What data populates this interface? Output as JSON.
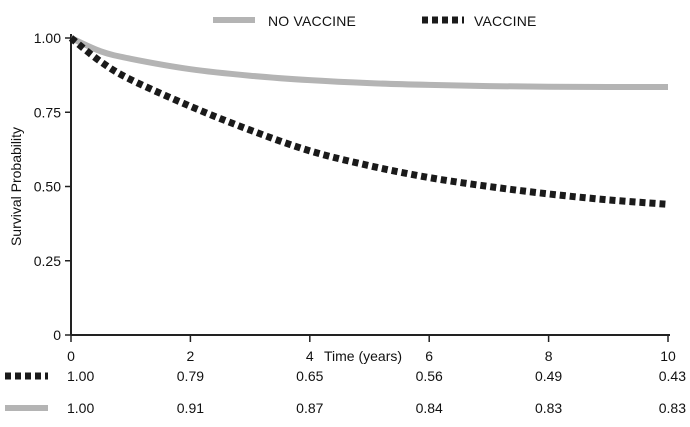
{
  "chart_data": {
    "type": "line",
    "xlabel": "Time (years)",
    "ylabel": "Survival Probability",
    "xlim": [
      0,
      10
    ],
    "ylim": [
      0,
      1
    ],
    "x_ticks": [
      "0",
      "2",
      "4",
      "6",
      "8",
      "10"
    ],
    "y_ticks": [
      "0",
      "0.25",
      "0.50",
      "0.75",
      "1.00"
    ],
    "x_tick_values": [
      0,
      2,
      4,
      6,
      8,
      10
    ],
    "y_tick_values": [
      0,
      0.25,
      0.5,
      0.75,
      1.0
    ],
    "legend_position": "top",
    "series": [
      {
        "name": "NO VACCINE",
        "color": "#b4b4b4",
        "style": "solid",
        "x": [
          0,
          0.5,
          1,
          2,
          3,
          4,
          5,
          6,
          7,
          8,
          9,
          10
        ],
        "values": [
          1.0,
          0.955,
          0.93,
          0.895,
          0.873,
          0.858,
          0.848,
          0.842,
          0.838,
          0.836,
          0.835,
          0.835
        ]
      },
      {
        "name": "VACCINE",
        "color": "#1a1a1a",
        "style": "dashed",
        "x": [
          0,
          0.5,
          1,
          2,
          3,
          4,
          5,
          6,
          7,
          8,
          9,
          10
        ],
        "values": [
          1.0,
          0.92,
          0.86,
          0.77,
          0.69,
          0.62,
          0.57,
          0.53,
          0.5,
          0.475,
          0.455,
          0.44
        ]
      }
    ],
    "risk_table": [
      {
        "series": "VACCINE",
        "values": [
          "1.00",
          "0.79",
          "0.65",
          "0.56",
          "0.49",
          "0.43"
        ]
      },
      {
        "series": "NO VACCINE",
        "values": [
          "1.00",
          "0.91",
          "0.87",
          "0.84",
          "0.83",
          "0.83"
        ]
      }
    ]
  }
}
